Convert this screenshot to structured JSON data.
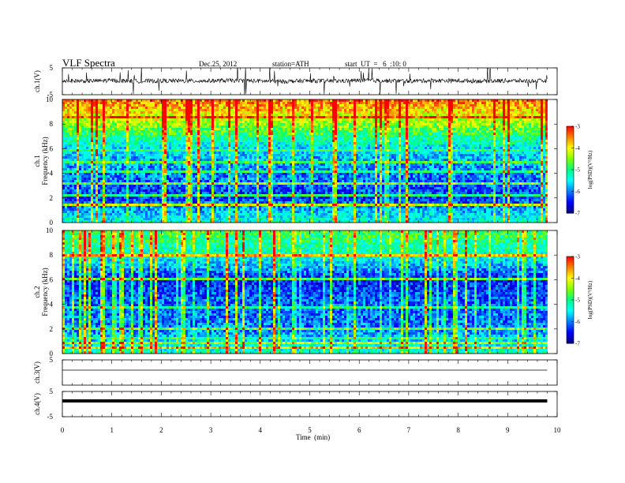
{
  "header": {
    "title": "VLF  Spectra",
    "date": "Dec.25, 2012",
    "station": "station=ATH",
    "start": "start  UT  =   6  :10: 0"
  },
  "colorbar": {
    "label": "log(PSD)(V²/Hz)",
    "ticks": [
      "-3",
      "-4",
      "-5",
      "-6",
      "-7"
    ],
    "colors": [
      "#ff0000",
      "#ff8000",
      "#ffff00",
      "#80ff00",
      "#00ff80",
      "#00ffff",
      "#0080ff",
      "#0000ff",
      "#000080"
    ]
  },
  "chart_data": [
    {
      "type": "line",
      "name": "ch1-waveform",
      "ylabel": "ch.1(V)",
      "ylim": [
        -5,
        5
      ],
      "ytick_labels": [
        "5",
        "-5"
      ],
      "x": [
        0,
        0.5,
        1,
        1.5,
        2,
        2.5,
        3,
        3.5,
        4,
        4.5,
        5,
        5.5,
        6,
        6.5,
        7,
        7.5,
        8,
        8.5,
        9,
        9.5,
        9.8
      ],
      "values": [
        0.2,
        0.1,
        0.3,
        0.0,
        0.2,
        0.1,
        0.2,
        0.3,
        0.1,
        0.0,
        0.2,
        0.1,
        0.3,
        0.2,
        0.1,
        0.3,
        0.2,
        0.1,
        0.2,
        0.1,
        0.2
      ]
    },
    {
      "type": "heatmap",
      "name": "ch1-spectrogram",
      "ylabel": "ch.1\nFrequency  (kHz)",
      "ylim": [
        0,
        10
      ],
      "ytick_labels": [
        "0",
        "2",
        "4",
        "6",
        "8",
        "10"
      ],
      "xlim": [
        0,
        9.8
      ],
      "log_psd_range": [
        -7,
        -3
      ],
      "freq_profile_khz": [
        0,
        2,
        4,
        6,
        8,
        10
      ],
      "log_psd_profile": [
        -5.3,
        -6.3,
        -6.0,
        -5.6,
        -4.4,
        -3.4
      ]
    },
    {
      "type": "heatmap",
      "name": "ch2-spectrogram",
      "ylabel": "ch.2\nFrequency  (kHz)",
      "ylim": [
        0,
        10
      ],
      "ytick_labels": [
        "0",
        "2",
        "4",
        "6",
        "8",
        "10"
      ],
      "xlim": [
        0,
        9.8
      ],
      "log_psd_range": [
        -7,
        -3
      ],
      "freq_profile_khz": [
        0,
        2,
        4,
        6,
        8,
        10
      ],
      "log_psd_profile": [
        -5.2,
        -6.0,
        -6.1,
        -6.4,
        -5.3,
        -4.8
      ]
    },
    {
      "type": "line",
      "name": "ch3-waveform",
      "ylabel": "ch.3(V)",
      "ylim": [
        -5,
        5
      ],
      "ytick_labels": [
        "5"
      ],
      "x": [
        0,
        9.8
      ],
      "values": [
        0,
        0
      ]
    },
    {
      "type": "line",
      "name": "ch4-waveform",
      "ylabel": "ch.4(V)",
      "ylim": [
        -5,
        5
      ],
      "ytick_labels": [
        "5",
        "-5"
      ],
      "x": [
        0,
        9.8
      ],
      "values": [
        0,
        0
      ]
    }
  ],
  "xaxis": {
    "label": "Time  (min)",
    "min": 0,
    "max": 10,
    "tick_labels": [
      "0",
      "1",
      "2",
      "3",
      "4",
      "5",
      "6",
      "7",
      "8",
      "9",
      "10"
    ],
    "data_end": 9.8
  }
}
